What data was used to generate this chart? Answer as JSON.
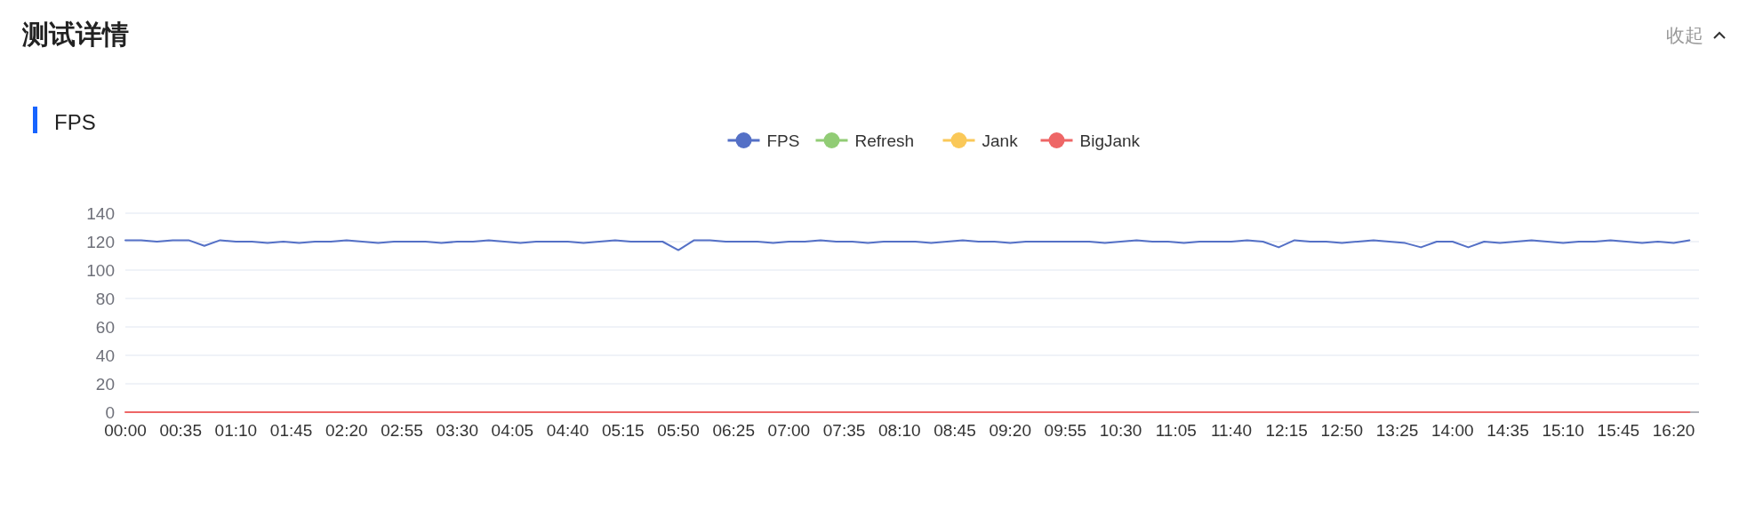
{
  "chart_data": {
    "type": "line",
    "title": "测试详情",
    "subtitle": "FPS",
    "annotations": [
      "收起"
    ],
    "x": [
      0,
      10,
      20,
      30,
      40,
      50,
      60,
      70,
      80,
      90,
      100,
      110,
      120,
      130,
      140,
      150,
      160,
      170,
      180,
      190,
      200,
      210,
      220,
      230,
      240,
      250,
      260,
      270,
      280,
      290,
      300,
      310,
      320,
      330,
      340,
      350,
      360,
      370,
      380,
      390,
      400,
      410,
      420,
      430,
      440,
      450,
      460,
      470,
      480,
      490,
      500,
      510,
      520,
      530,
      540,
      550,
      560,
      570,
      580,
      590,
      600,
      610,
      620,
      630,
      640,
      650,
      660,
      670,
      680,
      690,
      700,
      710,
      720,
      730,
      740,
      750,
      760,
      770,
      780,
      790,
      800,
      810,
      820,
      830,
      840,
      850,
      860,
      870,
      880,
      890,
      900,
      910,
      920,
      930,
      940,
      950,
      960,
      970,
      980,
      990
    ],
    "series": [
      {
        "name": "FPS",
        "color": "#5470c6",
        "values": [
          121,
          121,
          120,
          121,
          121,
          117,
          121,
          120,
          120,
          119,
          120,
          119,
          120,
          120,
          121,
          120,
          119,
          120,
          120,
          120,
          119,
          120,
          120,
          121,
          120,
          119,
          120,
          120,
          120,
          119,
          120,
          121,
          120,
          120,
          120,
          114,
          121,
          121,
          120,
          120,
          120,
          119,
          120,
          120,
          121,
          120,
          120,
          119,
          120,
          120,
          120,
          119,
          120,
          121,
          120,
          120,
          119,
          120,
          120,
          120,
          120,
          120,
          119,
          120,
          121,
          120,
          120,
          119,
          120,
          120,
          120,
          121,
          120,
          116,
          121,
          120,
          120,
          119,
          120,
          121,
          120,
          119,
          116,
          120,
          120,
          116,
          120,
          119,
          120,
          121,
          120,
          119,
          120,
          120,
          121,
          120,
          119,
          120,
          119,
          121
        ]
      },
      {
        "name": "Refresh",
        "color": "#91cc75",
        "values": [
          null,
          null,
          null,
          null,
          null,
          null,
          null,
          null,
          null,
          null,
          null,
          null,
          null,
          null,
          null,
          null,
          null,
          null,
          null,
          null,
          null,
          null,
          null,
          null,
          null,
          null,
          null,
          null,
          null,
          null,
          null,
          null,
          null,
          null,
          null,
          null,
          null,
          null,
          null,
          null,
          null,
          null,
          null,
          null,
          null,
          null,
          null,
          null,
          null,
          null,
          null,
          null,
          null,
          null,
          null,
          null,
          null,
          null,
          null,
          null,
          null,
          null,
          null,
          null,
          null,
          null,
          null,
          null,
          null,
          null,
          null,
          null,
          null,
          null,
          null,
          null,
          null,
          null,
          null,
          null,
          null,
          null,
          null,
          null,
          null,
          null,
          null,
          null,
          null,
          null,
          null,
          null,
          null,
          null,
          null,
          null,
          null,
          null,
          null,
          null
        ]
      },
      {
        "name": "Jank",
        "color": "#fac858",
        "values": [
          null,
          null,
          null,
          null,
          null,
          null,
          null,
          null,
          null,
          null,
          null,
          null,
          null,
          null,
          null,
          null,
          null,
          null,
          null,
          null,
          null,
          null,
          null,
          null,
          null,
          null,
          null,
          null,
          null,
          null,
          null,
          null,
          null,
          null,
          null,
          null,
          null,
          null,
          null,
          null,
          null,
          null,
          null,
          null,
          null,
          null,
          null,
          null,
          null,
          null,
          null,
          null,
          null,
          null,
          null,
          null,
          null,
          null,
          null,
          null,
          null,
          null,
          null,
          null,
          null,
          null,
          null,
          null,
          null,
          null,
          null,
          null,
          null,
          null,
          null,
          null,
          null,
          null,
          null,
          null,
          null,
          null,
          null,
          null,
          null,
          null,
          null,
          null,
          null,
          null,
          null,
          null,
          null,
          null,
          null,
          null,
          null,
          null,
          null,
          null
        ]
      },
      {
        "name": "BigJank",
        "color": "#ee6666",
        "values": [
          0,
          0,
          0,
          0,
          0,
          0,
          0,
          0,
          0,
          0,
          0,
          0,
          0,
          0,
          0,
          0,
          0,
          0,
          0,
          0,
          0,
          0,
          0,
          0,
          0,
          0,
          0,
          0,
          0,
          0,
          0,
          0,
          0,
          0,
          0,
          0,
          0,
          0,
          0,
          0,
          0,
          0,
          0,
          0,
          0,
          0,
          0,
          0,
          0,
          0,
          0,
          0,
          0,
          0,
          0,
          0,
          0,
          0,
          0,
          0,
          0,
          0,
          0,
          0,
          0,
          0,
          0,
          0,
          0,
          0,
          0,
          0,
          0,
          0,
          0,
          0,
          0,
          0,
          0,
          0,
          0,
          0,
          0,
          0,
          0,
          0,
          0,
          0,
          0,
          0,
          0,
          0,
          0,
          0,
          0,
          0,
          0,
          0,
          0,
          0
        ]
      }
    ],
    "xlim": [
      0,
      996
    ],
    "ylim": [
      0,
      140
    ],
    "yticks": [
      0,
      20,
      40,
      60,
      80,
      100,
      120,
      140
    ],
    "xticks": [
      {
        "value": 0,
        "label": "00:00"
      },
      {
        "value": 35,
        "label": "00:35"
      },
      {
        "value": 70,
        "label": "01:10"
      },
      {
        "value": 105,
        "label": "01:45"
      },
      {
        "value": 140,
        "label": "02:20"
      },
      {
        "value": 175,
        "label": "02:55"
      },
      {
        "value": 210,
        "label": "03:30"
      },
      {
        "value": 245,
        "label": "04:05"
      },
      {
        "value": 280,
        "label": "04:40"
      },
      {
        "value": 315,
        "label": "05:15"
      },
      {
        "value": 350,
        "label": "05:50"
      },
      {
        "value": 385,
        "label": "06:25"
      },
      {
        "value": 420,
        "label": "07:00"
      },
      {
        "value": 455,
        "label": "07:35"
      },
      {
        "value": 490,
        "label": "08:10"
      },
      {
        "value": 525,
        "label": "08:45"
      },
      {
        "value": 560,
        "label": "09:20"
      },
      {
        "value": 595,
        "label": "09:55"
      },
      {
        "value": 630,
        "label": "10:30"
      },
      {
        "value": 665,
        "label": "11:05"
      },
      {
        "value": 700,
        "label": "11:40"
      },
      {
        "value": 735,
        "label": "12:15"
      },
      {
        "value": 770,
        "label": "12:50"
      },
      {
        "value": 805,
        "label": "13:25"
      },
      {
        "value": 840,
        "label": "14:00"
      },
      {
        "value": 875,
        "label": "14:35"
      },
      {
        "value": 910,
        "label": "15:10"
      },
      {
        "value": 945,
        "label": "15:45"
      },
      {
        "value": 980,
        "label": "16:20"
      }
    ],
    "grid": "y",
    "legend": "top",
    "line_style": "solid"
  }
}
